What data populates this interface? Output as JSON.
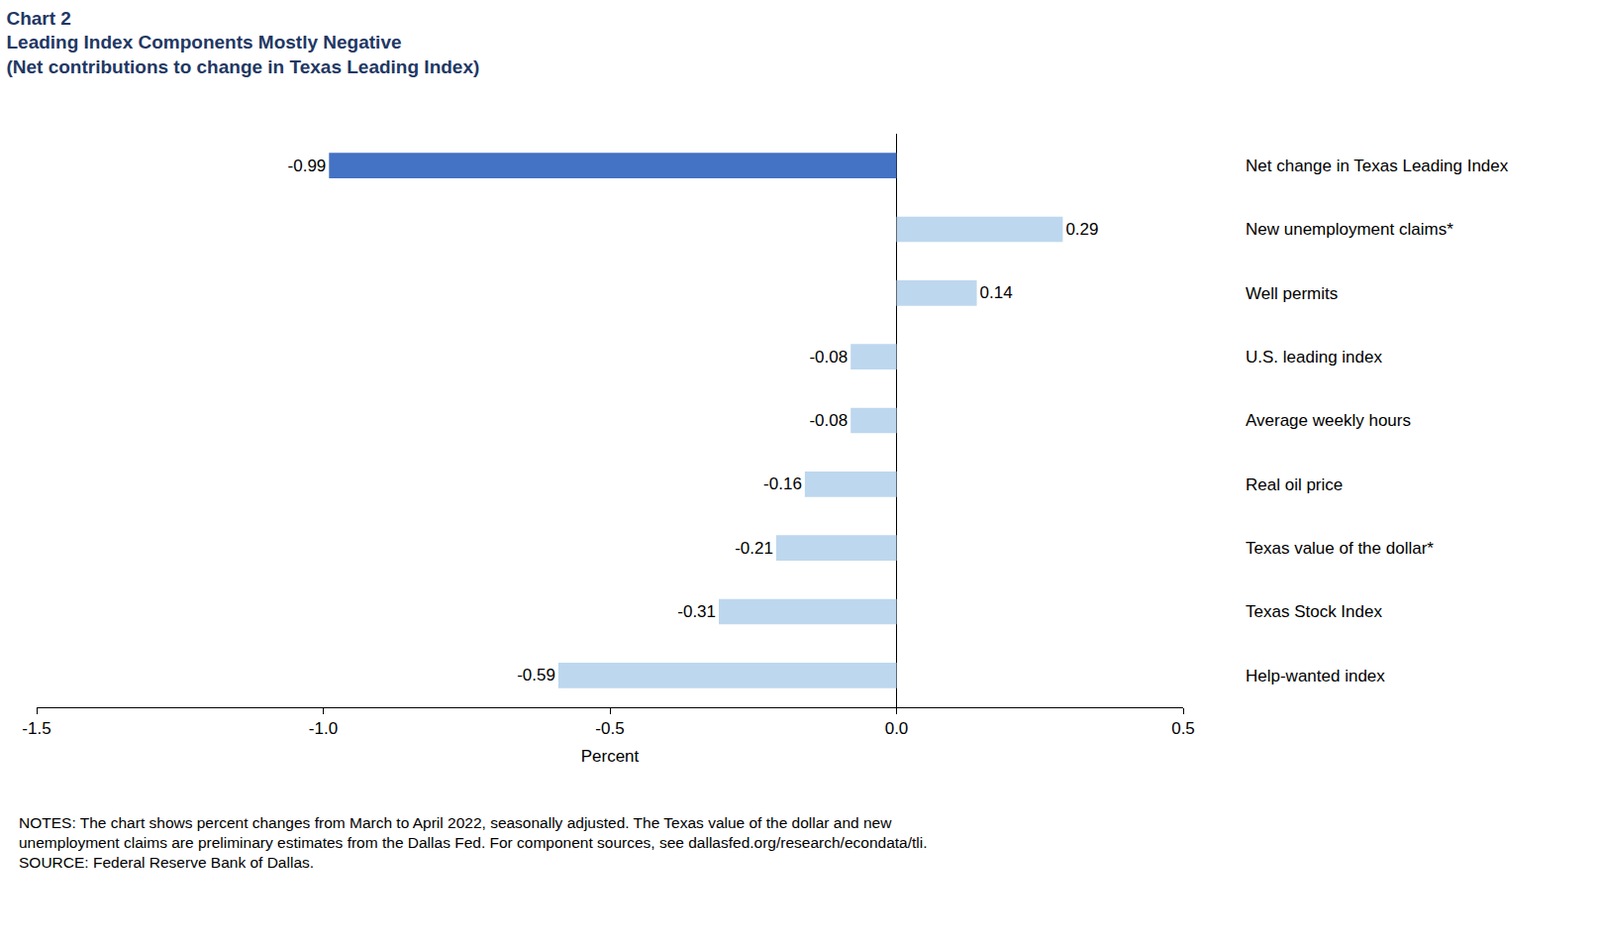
{
  "chart_data": {
    "type": "bar",
    "orientation": "horizontal",
    "title": "Chart 2",
    "subtitle": [
      "Leading Index Components Mostly Negative",
      "(Net contributions to change in Texas Leading Index)"
    ],
    "categories": [
      "Net change in Texas Leading Index",
      "New unemployment claims*",
      "Well permits",
      "U.S. leading index",
      "Average weekly hours",
      "Real oil price",
      "Texas value of the dollar*",
      "Texas Stock Index",
      "Help-wanted index"
    ],
    "values": [
      -0.99,
      0.29,
      0.14,
      -0.08,
      -0.08,
      -0.16,
      -0.21,
      -0.31,
      -0.59
    ],
    "colors": [
      "#4472c4",
      "#bdd7ee",
      "#bdd7ee",
      "#bdd7ee",
      "#bdd7ee",
      "#bdd7ee",
      "#bdd7ee",
      "#bdd7ee",
      "#bdd7ee"
    ],
    "data_labels": true,
    "xlabel": "Percent",
    "xlim": [
      -1.5,
      0.5
    ],
    "xticks": [
      -1.5,
      {
        "value": -1.0,
        "label": "-1.0"
      },
      -0.5,
      {
        "value": 0.0,
        "label": "0.0"
      },
      0.5
    ],
    "grid": false,
    "notes": [
      "NOTES: The chart shows percent changes from March to April 2022, seasonally adjusted. The Texas value of the dollar and new",
      "unemployment claims are preliminary estimates from the Dallas Fed. For component sources, see dallasfed.org/research/econdata/tli.",
      "SOURCE: Federal Reserve Bank of Dallas."
    ]
  }
}
